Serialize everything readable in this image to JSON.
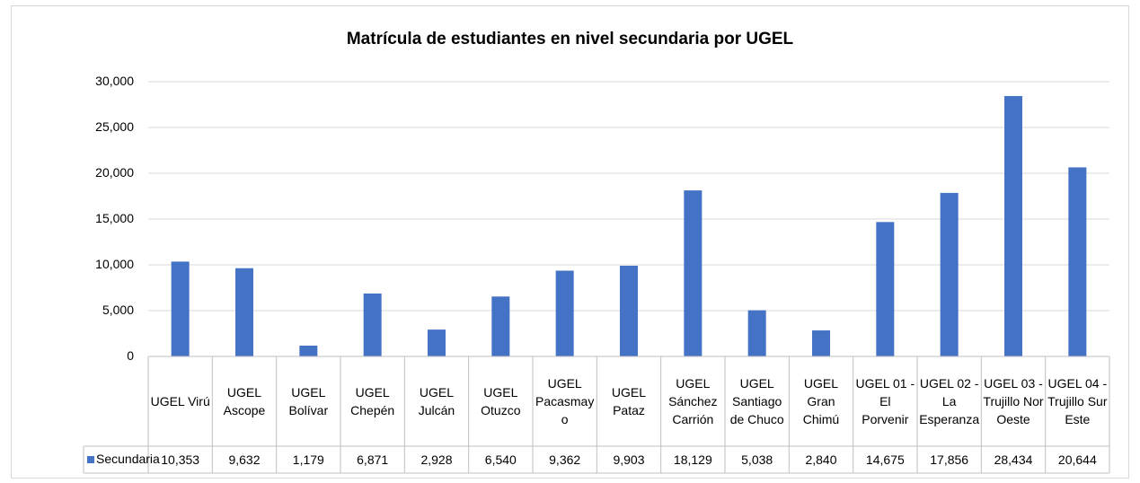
{
  "chart_data": {
    "type": "bar",
    "title": "Matrícula de estudiantes en nivel secundaria por UGEL",
    "categories": [
      "UGEL Virú",
      "UGEL Ascope",
      "UGEL Bolívar",
      "UGEL Chepén",
      "UGEL Julcán",
      "UGEL Otuzco",
      "UGEL Pacasmayo",
      "UGEL Pataz",
      "UGEL Sánchez Carrión",
      "UGEL Santiago de Chuco",
      "UGEL Gran Chimú",
      "UGEL 01 - El Porvenir",
      "UGEL 02 - La Esperanza",
      "UGEL 03 - Trujillo Nor Oeste",
      "UGEL 04 - Trujillo Sur Este"
    ],
    "series": [
      {
        "name": "Secundaria",
        "color": "#4472c4",
        "values": [
          10353,
          9632,
          1179,
          6871,
          2928,
          6540,
          9362,
          9903,
          18129,
          5038,
          2840,
          14675,
          17856,
          28434,
          20644
        ],
        "value_labels": [
          "10,353",
          "9,632",
          "1,179",
          "6,871",
          "2,928",
          "6,540",
          "9,362",
          "9,903",
          "18,129",
          "5,038",
          "2,840",
          "14,675",
          "17,856",
          "28,434",
          "20,644"
        ]
      }
    ],
    "ylim": [
      0,
      30000
    ],
    "yticks": [
      0,
      {
        "value": 5000,
        "label": "5,000"
      },
      {
        "value": 10000,
        "label": "10,000"
      },
      {
        "value": 15000,
        "label": "15,000"
      },
      {
        "value": 20000,
        "label": "20,000"
      },
      {
        "value": 25000,
        "label": "25,000"
      },
      {
        "value": 30000,
        "label": "30,000"
      }
    ],
    "grid": true
  }
}
